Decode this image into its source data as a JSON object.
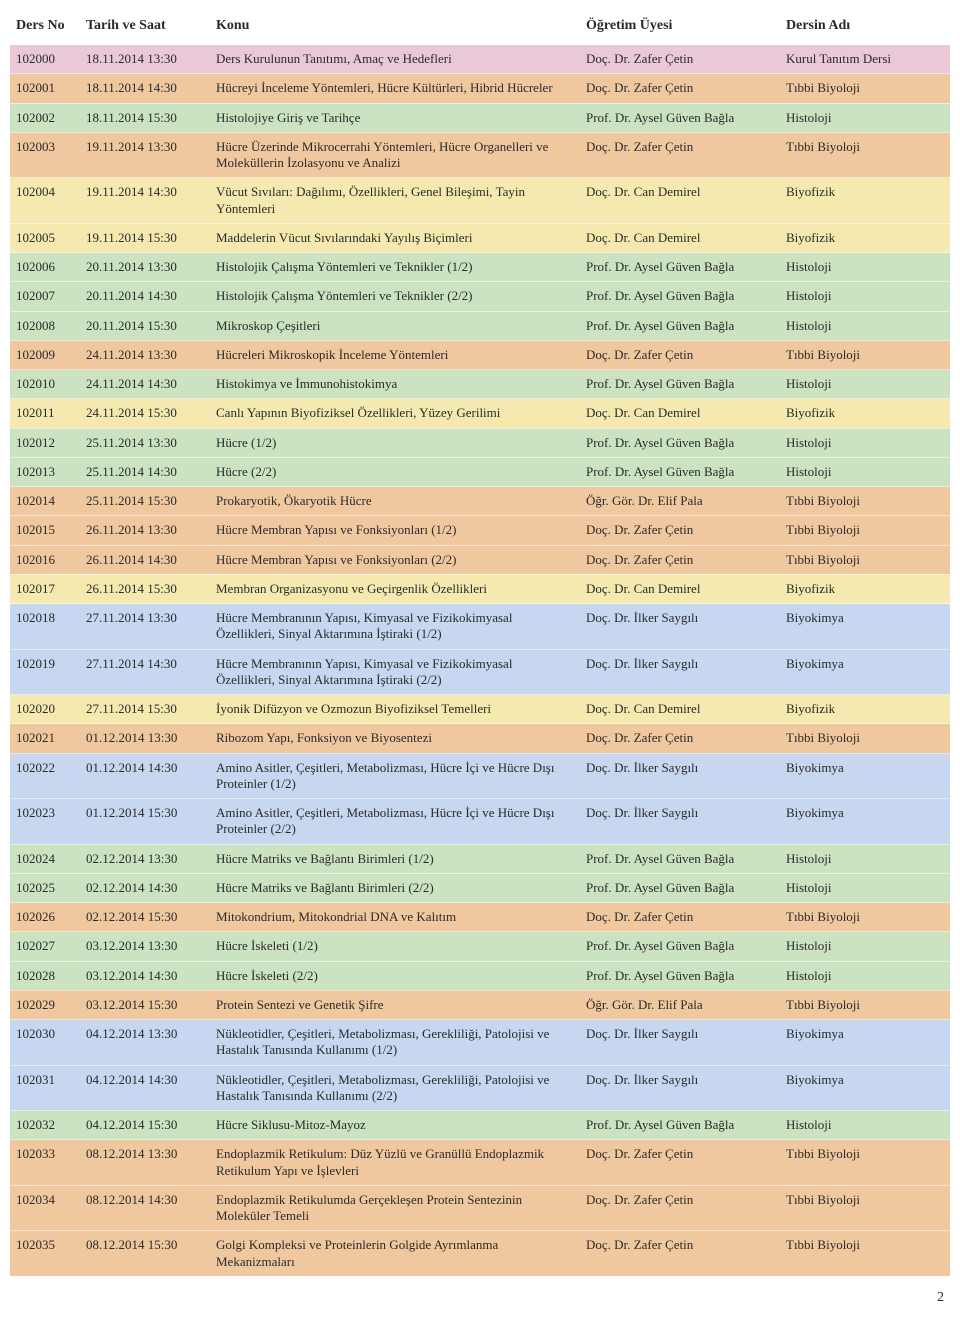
{
  "header": {
    "no": "Ders No",
    "date": "Tarih ve Saat",
    "topic": "Konu",
    "instructor": "Öğretim Üyesi",
    "course": "Dersin Adı"
  },
  "courses": {
    "histoloji": "Histoloji",
    "tibbi_biyoloji": "Tıbbi Biyoloji",
    "biyofizik": "Biyofizik",
    "biyokimya": "Biyokimya",
    "kurul": "Kurul Tanıtım Dersi"
  },
  "colors": {
    "histoloji": "#cce3c2",
    "tibbi_biyoloji": "#f0c8a0",
    "biyofizik": "#f5e9b0",
    "biyokimya": "#c6d7ef",
    "kurul": "#e9c9d8"
  },
  "instructors": {
    "zafer": "Doç. Dr. Zafer Çetin",
    "aysel": "Prof. Dr. Aysel Güven Bağla",
    "can": "Doç. Dr. Can Demirel",
    "elif": "Öğr. Gör. Dr. Elif Pala",
    "ilker": "Doç. Dr. İlker Saygılı"
  },
  "rows": [
    {
      "no": "102000",
      "date": "18.11.2014 13:30",
      "topic": "Ders Kurulunun Tanıtımı, Amaç ve Hedefleri",
      "instructor": "zafer",
      "course": "kurul"
    },
    {
      "no": "102001",
      "date": "18.11.2014 14:30",
      "topic": "Hücreyi İnceleme Yöntemleri, Hücre Kültürleri, Hibrid Hücreler",
      "instructor": "zafer",
      "course": "tibbi_biyoloji"
    },
    {
      "no": "102002",
      "date": "18.11.2014 15:30",
      "topic": "Histolojiye Giriş ve Tarihçe",
      "instructor": "aysel",
      "course": "histoloji"
    },
    {
      "no": "102003",
      "date": "19.11.2014 13:30",
      "topic": "Hücre Üzerinde Mikrocerrahi Yöntemleri, Hücre Organelleri ve Moleküllerin İzolasyonu ve Analizi",
      "instructor": "zafer",
      "course": "tibbi_biyoloji"
    },
    {
      "no": "102004",
      "date": "19.11.2014 14:30",
      "topic": "Vücut Sıvıları: Dağılımı, Özellikleri, Genel Bileşimi, Tayin Yöntemleri",
      "instructor": "can",
      "course": "biyofizik"
    },
    {
      "no": "102005",
      "date": "19.11.2014 15:30",
      "topic": "Maddelerin Vücut Sıvılarındaki Yayılış Biçimleri",
      "instructor": "can",
      "course": "biyofizik"
    },
    {
      "no": "102006",
      "date": "20.11.2014 13:30",
      "topic": "Histolojik Çalışma Yöntemleri ve Teknikler (1/2)",
      "instructor": "aysel",
      "course": "histoloji"
    },
    {
      "no": "102007",
      "date": "20.11.2014 14:30",
      "topic": "Histolojik Çalışma Yöntemleri ve Teknikler (2/2)",
      "instructor": "aysel",
      "course": "histoloji"
    },
    {
      "no": "102008",
      "date": "20.11.2014 15:30",
      "topic": "Mikroskop Çeşitleri",
      "instructor": "aysel",
      "course": "histoloji"
    },
    {
      "no": "102009",
      "date": "24.11.2014 13:30",
      "topic": "Hücreleri Mikroskopik İnceleme Yöntemleri",
      "instructor": "zafer",
      "course": "tibbi_biyoloji"
    },
    {
      "no": "102010",
      "date": "24.11.2014 14:30",
      "topic": "Histokimya ve İmmunohistokimya",
      "instructor": "aysel",
      "course": "histoloji"
    },
    {
      "no": "102011",
      "date": "24.11.2014 15:30",
      "topic": "Canlı Yapının Biyofiziksel Özellikleri, Yüzey Gerilimi",
      "instructor": "can",
      "course": "biyofizik"
    },
    {
      "no": "102012",
      "date": "25.11.2014 13:30",
      "topic": "Hücre (1/2)",
      "instructor": "aysel",
      "course": "histoloji"
    },
    {
      "no": "102013",
      "date": "25.11.2014 14:30",
      "topic": "Hücre (2/2)",
      "instructor": "aysel",
      "course": "histoloji"
    },
    {
      "no": "102014",
      "date": "25.11.2014 15:30",
      "topic": "Prokaryotik, Ökaryotik Hücre",
      "instructor": "elif",
      "course": "tibbi_biyoloji"
    },
    {
      "no": "102015",
      "date": "26.11.2014 13:30",
      "topic": "Hücre Membran Yapısı ve Fonksiyonları (1/2)",
      "instructor": "zafer",
      "course": "tibbi_biyoloji"
    },
    {
      "no": "102016",
      "date": "26.11.2014 14:30",
      "topic": "Hücre Membran Yapısı ve Fonksiyonları (2/2)",
      "instructor": "zafer",
      "course": "tibbi_biyoloji"
    },
    {
      "no": "102017",
      "date": "26.11.2014 15:30",
      "topic": "Membran Organizasyonu ve Geçirgenlik Özellikleri",
      "instructor": "can",
      "course": "biyofizik"
    },
    {
      "no": "102018",
      "date": "27.11.2014 13:30",
      "topic": "Hücre Membranının Yapısı, Kimyasal ve Fizikokimyasal Özellikleri, Sinyal Aktarımına İştiraki (1/2)",
      "instructor": "ilker",
      "course": "biyokimya"
    },
    {
      "no": "102019",
      "date": "27.11.2014 14:30",
      "topic": "Hücre Membranının Yapısı, Kimyasal ve Fizikokimyasal Özellikleri, Sinyal Aktarımına İştiraki (2/2)",
      "instructor": "ilker",
      "course": "biyokimya"
    },
    {
      "no": "102020",
      "date": "27.11.2014 15:30",
      "topic": "İyonik Difüzyon ve Ozmozun Biyofiziksel Temelleri",
      "instructor": "can",
      "course": "biyofizik"
    },
    {
      "no": "102021",
      "date": "01.12.2014 13:30",
      "topic": "Ribozom Yapı, Fonksiyon ve Biyosentezi",
      "instructor": "zafer",
      "course": "tibbi_biyoloji"
    },
    {
      "no": "102022",
      "date": "01.12.2014 14:30",
      "topic": "Amino Asitler, Çeşitleri, Metabolizması, Hücre İçi ve Hücre Dışı Proteinler (1/2)",
      "instructor": "ilker",
      "course": "biyokimya"
    },
    {
      "no": "102023",
      "date": "01.12.2014 15:30",
      "topic": "Amino Asitler, Çeşitleri, Metabolizması, Hücre İçi ve Hücre Dışı Proteinler (2/2)",
      "instructor": "ilker",
      "course": "biyokimya"
    },
    {
      "no": "102024",
      "date": "02.12.2014 13:30",
      "topic": "Hücre Matriks ve Bağlantı Birimleri (1/2)",
      "instructor": "aysel",
      "course": "histoloji"
    },
    {
      "no": "102025",
      "date": "02.12.2014 14:30",
      "topic": "Hücre Matriks ve Bağlantı Birimleri (2/2)",
      "instructor": "aysel",
      "course": "histoloji"
    },
    {
      "no": "102026",
      "date": "02.12.2014 15:30",
      "topic": "Mitokondrium, Mitokondrial DNA ve Kalıtım",
      "instructor": "zafer",
      "course": "tibbi_biyoloji"
    },
    {
      "no": "102027",
      "date": "03.12.2014 13:30",
      "topic": "Hücre İskeleti (1/2)",
      "instructor": "aysel",
      "course": "histoloji"
    },
    {
      "no": "102028",
      "date": "03.12.2014 14:30",
      "topic": "Hücre İskeleti (2/2)",
      "instructor": "aysel",
      "course": "histoloji"
    },
    {
      "no": "102029",
      "date": "03.12.2014 15:30",
      "topic": "Protein Sentezi ve Genetik Şifre",
      "instructor": "elif",
      "course": "tibbi_biyoloji"
    },
    {
      "no": "102030",
      "date": "04.12.2014 13:30",
      "topic": "Nükleotidler, Çeşitleri, Metabolizması, Gerekliliği, Patolojisi ve Hastalık Tanısında Kullanımı (1/2)",
      "instructor": "ilker",
      "course": "biyokimya"
    },
    {
      "no": "102031",
      "date": "04.12.2014 14:30",
      "topic": "Nükleotidler, Çeşitleri, Metabolizması, Gerekliliği, Patolojisi ve Hastalık Tanısında Kullanımı (2/2)",
      "instructor": "ilker",
      "course": "biyokimya"
    },
    {
      "no": "102032",
      "date": "04.12.2014 15:30",
      "topic": "Hücre Siklusu-Mitoz-Mayoz",
      "instructor": "aysel",
      "course": "histoloji"
    },
    {
      "no": "102033",
      "date": "08.12.2014 13:30",
      "topic": "Endoplazmik Retikulum: Düz Yüzlü ve Granüllü Endoplazmik Retikulum Yapı ve İşlevleri",
      "instructor": "zafer",
      "course": "tibbi_biyoloji"
    },
    {
      "no": "102034",
      "date": "08.12.2014 14:30",
      "topic": "Endoplazmik Retikulumda Gerçekleşen Protein Sentezinin Moleküler Temeli",
      "instructor": "zafer",
      "course": "tibbi_biyoloji"
    },
    {
      "no": "102035",
      "date": "08.12.2014 15:30",
      "topic": "Golgi Kompleksi ve Proteinlerin Golgide Ayrımlanma Mekanizmaları",
      "instructor": "zafer",
      "course": "tibbi_biyoloji"
    }
  ],
  "page_number": "2"
}
